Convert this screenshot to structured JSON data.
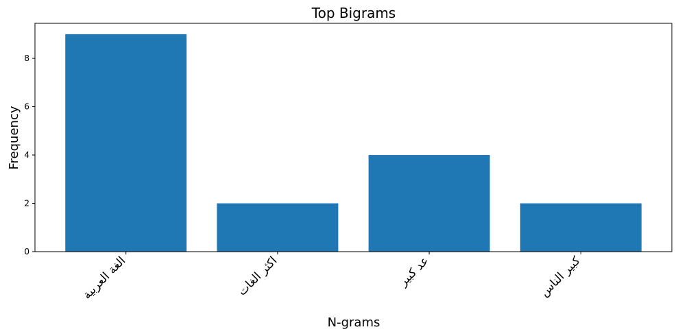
{
  "chart_data": {
    "type": "bar",
    "title": "Top Bigrams",
    "xlabel": "N-grams",
    "ylabel": "Frequency",
    "categories": [
      "الغة العربية",
      "اكثر الغات",
      "عد كبير",
      "كبير الناس"
    ],
    "values": [
      9,
      2,
      4,
      2
    ],
    "ylim": [
      0,
      9.45
    ],
    "yticks": [
      0,
      2,
      4,
      6,
      8
    ],
    "bar_color": "#1f77b4",
    "grid": false,
    "legend": "none"
  }
}
